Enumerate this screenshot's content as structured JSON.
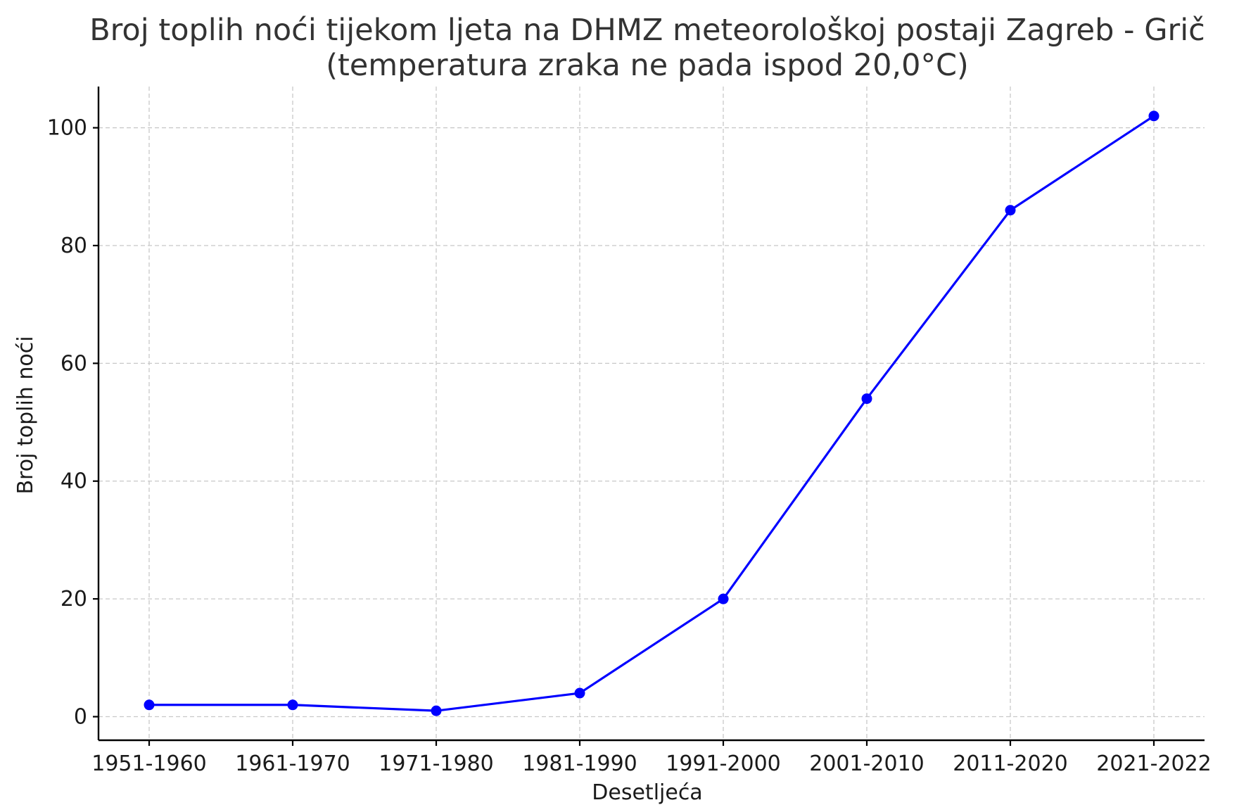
{
  "chart_data": {
    "type": "line",
    "title": "Broj toplih noći tijekom ljeta na DHMZ meteorološkoj postaji Zagreb - Grič",
    "subtitle": "(temperatura zraka ne pada ispod 20,0°C)",
    "xlabel": "Desetljeća",
    "ylabel": "Broj toplih noći",
    "categories": [
      "1951-1960",
      "1961-1970",
      "1971-1980",
      "1981-1990",
      "1991-2000",
      "2001-2010",
      "2011-2020",
      "2021-2022"
    ],
    "series": [
      {
        "values": [
          2,
          2,
          1,
          4,
          20,
          54,
          86,
          102
        ]
      }
    ],
    "ylim": [
      -4,
      107
    ],
    "yticks": [
      0,
      20,
      40,
      60,
      80,
      100
    ],
    "grid": true,
    "marker": "circle",
    "color": "#0000ff"
  }
}
